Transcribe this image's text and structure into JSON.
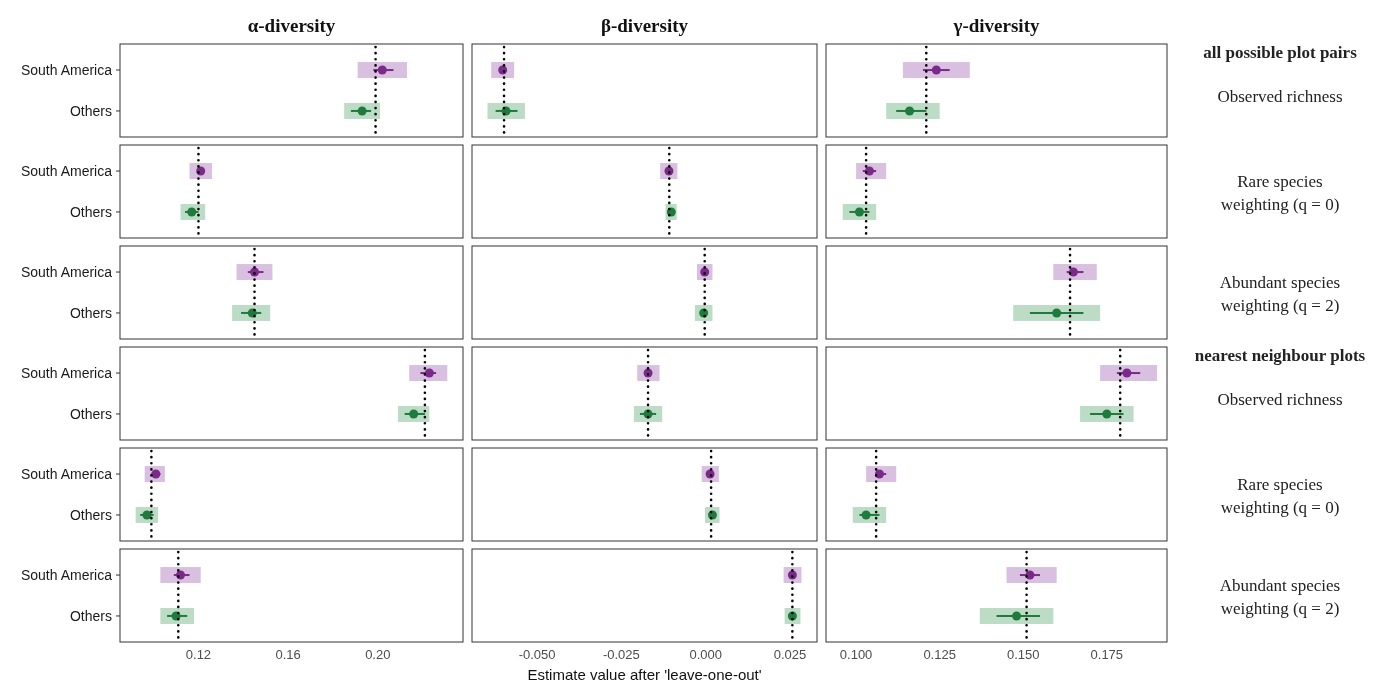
{
  "chart_data": [
    {
      "type": "scatter",
      "title": "α-diversity",
      "orientation": "horizontal",
      "categories": [
        "South America",
        "Others",
        "South America",
        "Others",
        "South America",
        "Others",
        "South America",
        "Others",
        "South America",
        "Others",
        "South America",
        "Others"
      ],
      "xlim": [
        0.085,
        0.238
      ],
      "xticks": [
        0.12,
        0.16,
        {
          "value": 0.2,
          "label": "0.20"
        }
      ],
      "marker": "circle",
      "ref_lines": [
        {
          "axis": "x",
          "value": 0.199,
          "line_style": "dotted",
          "color": "#000000"
        },
        {
          "axis": "x",
          "value": 0.12,
          "line_style": "dotted",
          "color": "#000000"
        },
        {
          "axis": "x",
          "value": 0.145,
          "line_style": "dotted",
          "color": "#000000"
        },
        {
          "axis": "x",
          "value": 0.221,
          "line_style": "dotted",
          "color": "#000000"
        },
        {
          "axis": "x",
          "value": 0.099,
          "line_style": "dotted",
          "color": "#000000"
        },
        {
          "axis": "x",
          "value": 0.111,
          "line_style": "dotted",
          "color": "#000000"
        }
      ],
      "series": [
        {
          "type": "bar",
          "base": [
            0.191,
            0.185,
            0.116,
            0.112,
            0.137,
            0.135,
            0.214,
            0.209,
            0.096,
            0.092,
            0.103,
            0.103
          ],
          "values": [
            0.022,
            0.016,
            0.01,
            0.011,
            0.016,
            0.017,
            0.017,
            0.014,
            0.009,
            0.01,
            0.018,
            0.015
          ],
          "colors": [
            "#d9c0e0",
            "#bcdcc6",
            "#d9c0e0",
            "#bcdcc6",
            "#d9c0e0",
            "#bcdcc6",
            "#d9c0e0",
            "#bcdcc6",
            "#d9c0e0",
            "#bcdcc6",
            "#d9c0e0",
            "#bcdcc6"
          ]
        },
        {
          "type": "scatter",
          "values": [
            0.202,
            0.193,
            0.121,
            0.117,
            0.145,
            0.144,
            0.223,
            0.216,
            0.101,
            0.097,
            0.112,
            0.11
          ],
          "errors": [
            [
              0.198,
              0.207
            ],
            [
              0.188,
              0.197
            ],
            [
              0.12,
              0.122
            ],
            [
              0.114,
              0.12
            ],
            [
              0.142,
              0.149
            ],
            [
              0.139,
              0.148
            ],
            [
              0.219,
              0.226
            ],
            [
              0.212,
              0.221
            ],
            [
              0.099,
              0.103
            ],
            [
              0.094,
              0.1
            ],
            [
              0.109,
              0.116
            ],
            [
              0.106,
              0.115
            ]
          ],
          "colors": [
            "#7b2a8a",
            "#1e7b3c",
            "#7b2a8a",
            "#1e7b3c",
            "#7b2a8a",
            "#1e7b3c",
            "#7b2a8a",
            "#1e7b3c",
            "#7b2a8a",
            "#1e7b3c",
            "#7b2a8a",
            "#1e7b3c"
          ]
        }
      ]
    },
    {
      "type": "scatter",
      "title": "β-diversity",
      "xlabel": "Estimate value after 'leave-one-out'",
      "orientation": "horizontal",
      "categories": [
        null,
        null,
        null,
        null,
        null,
        null,
        null,
        null,
        null,
        null,
        null,
        null
      ],
      "xlim": [
        -0.0693,
        0.033
      ],
      "xticks": [
        {
          "value": -0.05,
          "label": "-0.050"
        },
        -0.025,
        {
          "value": 0,
          "label": "0.000"
        },
        0.025
      ],
      "tick_labels": "x",
      "marker": "circle",
      "ref_lines": [
        {
          "axis": "x",
          "value": -0.0598,
          "line_style": "dotted",
          "color": "#000000"
        },
        {
          "axis": "x",
          "value": -0.0108,
          "line_style": "dotted",
          "color": "#000000"
        },
        {
          "axis": "x",
          "value": -0.0003,
          "line_style": "dotted",
          "color": "#000000"
        },
        {
          "axis": "x",
          "value": -0.0171,
          "line_style": "dotted",
          "color": "#000000"
        },
        {
          "axis": "x",
          "value": 0.0016,
          "line_style": "dotted",
          "color": "#000000"
        },
        {
          "axis": "x",
          "value": 0.0257,
          "line_style": "dotted",
          "color": "#000000"
        }
      ],
      "series": [
        {
          "type": "bar",
          "base": [
            -0.0636,
            -0.0647,
            -0.0135,
            -0.0119,
            -0.0026,
            -0.0032,
            -0.0203,
            -0.0213,
            -0.0012,
            -0.0002,
            0.0231,
            0.0234
          ],
          "values": [
            0.0068,
            0.0111,
            0.0051,
            0.0033,
            0.0046,
            0.0052,
            0.0066,
            0.0084,
            0.0051,
            0.0043,
            0.0053,
            0.0047
          ],
          "colors": [
            "#d9c0e0",
            "#bcdcc6",
            "#d9c0e0",
            "#bcdcc6",
            "#d9c0e0",
            "#bcdcc6",
            "#d9c0e0",
            "#bcdcc6",
            "#d9c0e0",
            "#bcdcc6",
            "#d9c0e0",
            "#bcdcc6"
          ]
        },
        {
          "type": "scatter",
          "values": [
            -0.0602,
            -0.0592,
            -0.0109,
            -0.0102,
            -0.0003,
            -0.0006,
            -0.0171,
            -0.0171,
            0.0013,
            0.002,
            0.0257,
            0.0257
          ],
          "errors": [
            null,
            [
              -0.0623,
              -0.0558
            ],
            null,
            null,
            null,
            null,
            null,
            [
              -0.0195,
              -0.0147
            ],
            null,
            null,
            null,
            null
          ],
          "colors": [
            "#7b2a8a",
            "#1e7b3c",
            "#7b2a8a",
            "#1e7b3c",
            "#7b2a8a",
            "#1e7b3c",
            "#7b2a8a",
            "#1e7b3c",
            "#7b2a8a",
            "#1e7b3c",
            "#7b2a8a",
            "#1e7b3c"
          ]
        }
      ]
    },
    {
      "type": "scatter",
      "title": "γ-diversity",
      "orientation": "horizontal",
      "categories": [
        null,
        null,
        null,
        null,
        null,
        null,
        null,
        null,
        null,
        null,
        null,
        null
      ],
      "xlim": [
        0.091,
        0.193
      ],
      "xticks": [
        {
          "value": 0.1,
          "label": "0.100"
        },
        0.125,
        {
          "value": 0.15,
          "label": "0.150"
        },
        0.175
      ],
      "tick_labels": "x",
      "marker": "circle",
      "annotations": [
        "all possible plot pairs",
        "Observed richness",
        "Rare species weighting (q = 0)",
        "Abundant species weighting (q = 2)",
        "nearest neighbour plots",
        "Observed richness",
        "Rare species weighting (q = 0)",
        "Abundant species weighting (q = 2)"
      ],
      "ref_lines": [
        {
          "axis": "x",
          "value": 0.121,
          "line_style": "dotted",
          "color": "#000000"
        },
        {
          "axis": "x",
          "value": 0.103,
          "line_style": "dotted",
          "color": "#000000"
        },
        {
          "axis": "x",
          "value": 0.164,
          "line_style": "dotted",
          "color": "#000000"
        },
        {
          "axis": "x",
          "value": 0.179,
          "line_style": "dotted",
          "color": "#000000"
        },
        {
          "axis": "x",
          "value": 0.106,
          "line_style": "dotted",
          "color": "#000000"
        },
        {
          "axis": "x",
          "value": 0.151,
          "line_style": "dotted",
          "color": "#000000"
        }
      ],
      "series": [
        {
          "type": "bar",
          "base": [
            0.114,
            0.109,
            0.1,
            0.096,
            0.159,
            0.147,
            0.173,
            0.167,
            0.103,
            0.099,
            0.145,
            0.137
          ],
          "values": [
            0.02,
            0.016,
            0.009,
            0.01,
            0.013,
            0.026,
            0.017,
            0.016,
            0.009,
            0.01,
            0.015,
            0.022
          ],
          "colors": [
            "#d9c0e0",
            "#bcdcc6",
            "#d9c0e0",
            "#bcdcc6",
            "#d9c0e0",
            "#bcdcc6",
            "#d9c0e0",
            "#bcdcc6",
            "#d9c0e0",
            "#bcdcc6",
            "#d9c0e0",
            "#bcdcc6"
          ]
        },
        {
          "type": "scatter",
          "values": [
            0.124,
            0.116,
            0.104,
            0.101,
            0.165,
            0.16,
            0.181,
            0.175,
            0.107,
            0.103,
            0.152,
            0.148
          ],
          "errors": [
            [
              0.12,
              0.128
            ],
            [
              0.112,
              0.121
            ],
            [
              0.102,
              0.106
            ],
            [
              0.098,
              0.104
            ],
            [
              0.163,
              0.168
            ],
            [
              0.152,
              0.168
            ],
            [
              0.178,
              0.185
            ],
            [
              0.17,
              0.18
            ],
            [
              0.106,
              0.109
            ],
            [
              0.101,
              0.107
            ],
            [
              0.149,
              0.155
            ],
            [
              0.142,
              0.155
            ]
          ],
          "colors": [
            "#7b2a8a",
            "#1e7b3c",
            "#7b2a8a",
            "#1e7b3c",
            "#7b2a8a",
            "#1e7b3c",
            "#7b2a8a",
            "#1e7b3c",
            "#7b2a8a",
            "#1e7b3c",
            "#7b2a8a",
            "#1e7b3c"
          ]
        }
      ]
    }
  ]
}
